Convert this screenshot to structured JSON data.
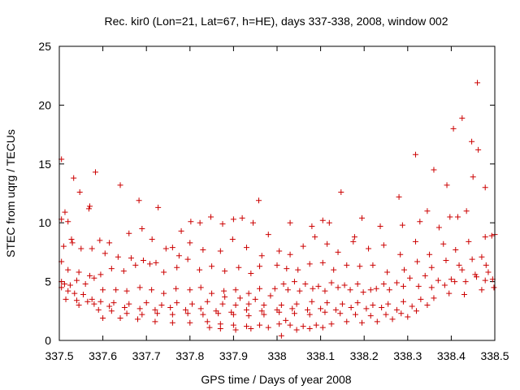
{
  "chart_data": {
    "type": "scatter",
    "title": "Rec. kir0 (Lon=21, Lat=67, h=HE), days 337-338, 2008, window 002",
    "xlabel": "GPS time / Days of year 2008",
    "ylabel": "STEC from uqrg / TECUs",
    "xlim": [
      337.5,
      338.5
    ],
    "ylim": [
      0,
      25
    ],
    "xticks": [
      337.5,
      337.6,
      337.7,
      337.8,
      337.9,
      338.0,
      338.1,
      338.2,
      338.3,
      338.4,
      338.5
    ],
    "xtick_labels": [
      "337.5",
      "337.6",
      "337.7",
      "337.8",
      "337.9",
      "338",
      "338.1",
      "338.2",
      "338.3",
      "338.4",
      "338.5"
    ],
    "yticks": [
      0,
      5,
      10,
      15,
      20,
      25
    ],
    "ytick_labels": [
      "0",
      "5",
      "10",
      "15",
      "20",
      "25"
    ],
    "grid": false,
    "legend": "none",
    "marker": "plus",
    "marker_color": "#cc0000",
    "series": [
      {
        "points": [
          [
            337.505,
            15.4
          ],
          [
            337.513,
            10.9
          ],
          [
            337.52,
            10.1
          ],
          [
            337.533,
            13.8
          ],
          [
            337.547,
            12.6
          ],
          [
            337.568,
            11.2
          ],
          [
            337.583,
            14.3
          ],
          [
            337.64,
            13.2
          ],
          [
            337.683,
            11.9
          ],
          [
            337.727,
            11.3
          ],
          [
            337.958,
            11.9
          ],
          [
            338.147,
            12.6
          ],
          [
            338.28,
            12.2
          ],
          [
            338.318,
            15.8
          ],
          [
            338.36,
            14.5
          ],
          [
            338.405,
            18.0
          ],
          [
            338.425,
            18.9
          ],
          [
            338.447,
            16.9
          ],
          [
            338.462,
            16.2
          ],
          [
            338.46,
            21.9
          ],
          [
            338.478,
            13.0
          ],
          [
            338.45,
            13.9
          ],
          [
            338.39,
            13.2
          ],
          [
            338.345,
            11.0
          ],
          [
            337.505,
            10.3
          ],
          [
            337.528,
            8.6
          ],
          [
            337.57,
            11.4
          ],
          [
            337.593,
            8.5
          ],
          [
            337.615,
            8.3
          ],
          [
            337.66,
            9.1
          ],
          [
            337.69,
            9.5
          ],
          [
            337.713,
            8.6
          ],
          [
            337.76,
            7.9
          ],
          [
            337.78,
            9.3
          ],
          [
            337.802,
            10.1
          ],
          [
            337.823,
            10.0
          ],
          [
            337.848,
            10.5
          ],
          [
            337.875,
            9.9
          ],
          [
            337.9,
            10.3
          ],
          [
            337.92,
            10.4
          ],
          [
            337.945,
            10.0
          ],
          [
            337.98,
            9.0
          ],
          [
            338.03,
            10.0
          ],
          [
            338.08,
            9.7
          ],
          [
            338.105,
            10.2
          ],
          [
            338.12,
            10.0
          ],
          [
            338.178,
            8.8
          ],
          [
            338.195,
            10.4
          ],
          [
            338.237,
            9.7
          ],
          [
            338.288,
            9.8
          ],
          [
            338.328,
            10.1
          ],
          [
            338.372,
            9.6
          ],
          [
            338.397,
            10.5
          ],
          [
            338.415,
            10.5
          ],
          [
            338.435,
            11.0
          ],
          [
            338.478,
            8.8
          ],
          [
            338.493,
            8.9
          ],
          [
            338.5,
            9.0
          ],
          [
            337.51,
            8.0
          ],
          [
            337.53,
            8.3
          ],
          [
            337.55,
            7.8
          ],
          [
            337.575,
            7.8
          ],
          [
            337.605,
            7.4
          ],
          [
            337.635,
            7.1
          ],
          [
            337.665,
            7.0
          ],
          [
            337.693,
            6.8
          ],
          [
            337.722,
            6.6
          ],
          [
            337.745,
            7.8
          ],
          [
            337.775,
            7.2
          ],
          [
            337.8,
            8.3
          ],
          [
            337.83,
            7.7
          ],
          [
            337.87,
            7.6
          ],
          [
            337.898,
            8.6
          ],
          [
            337.93,
            7.9
          ],
          [
            337.965,
            7.2
          ],
          [
            338.005,
            7.6
          ],
          [
            338.03,
            7.3
          ],
          [
            338.06,
            8.0
          ],
          [
            338.087,
            8.8
          ],
          [
            338.115,
            8.2
          ],
          [
            338.14,
            7.5
          ],
          [
            338.175,
            8.4
          ],
          [
            338.21,
            7.8
          ],
          [
            338.245,
            8.1
          ],
          [
            338.283,
            7.3
          ],
          [
            338.318,
            8.4
          ],
          [
            338.35,
            7.3
          ],
          [
            338.382,
            8.2
          ],
          [
            338.41,
            7.7
          ],
          [
            338.44,
            8.4
          ],
          [
            338.47,
            7.1
          ],
          [
            337.505,
            6.7
          ],
          [
            337.52,
            6.0
          ],
          [
            337.545,
            5.8
          ],
          [
            337.57,
            5.5
          ],
          [
            337.595,
            5.6
          ],
          [
            337.62,
            6.1
          ],
          [
            337.648,
            5.9
          ],
          [
            337.675,
            6.4
          ],
          [
            337.708,
            6.5
          ],
          [
            337.74,
            5.8
          ],
          [
            337.77,
            6.2
          ],
          [
            337.795,
            6.9
          ],
          [
            337.822,
            6.0
          ],
          [
            337.85,
            6.3
          ],
          [
            337.88,
            5.9
          ],
          [
            337.912,
            6.2
          ],
          [
            337.94,
            5.7
          ],
          [
            337.96,
            6.3
          ],
          [
            338.0,
            6.4
          ],
          [
            338.022,
            6.1
          ],
          [
            338.048,
            6.0
          ],
          [
            338.075,
            6.5
          ],
          [
            338.105,
            6.6
          ],
          [
            338.13,
            6.0
          ],
          [
            338.16,
            6.4
          ],
          [
            338.19,
            6.3
          ],
          [
            338.22,
            6.4
          ],
          [
            338.253,
            5.8
          ],
          [
            338.292,
            6.0
          ],
          [
            338.322,
            6.7
          ],
          [
            338.355,
            6.2
          ],
          [
            338.388,
            6.8
          ],
          [
            338.418,
            6.4
          ],
          [
            338.448,
            6.9
          ],
          [
            338.48,
            6.4
          ],
          [
            337.505,
            5.0
          ],
          [
            337.512,
            4.8
          ],
          [
            337.525,
            4.7
          ],
          [
            337.54,
            5.1
          ],
          [
            337.56,
            4.8
          ],
          [
            337.58,
            5.3
          ],
          [
            337.6,
            4.3
          ],
          [
            337.63,
            4.3
          ],
          [
            337.655,
            4.2
          ],
          [
            337.685,
            4.5
          ],
          [
            337.712,
            4.3
          ],
          [
            337.74,
            4.0
          ],
          [
            337.768,
            4.4
          ],
          [
            337.8,
            4.3
          ],
          [
            337.825,
            4.5
          ],
          [
            337.85,
            4.0
          ],
          [
            337.878,
            4.2
          ],
          [
            337.905,
            4.3
          ],
          [
            337.935,
            4.0
          ],
          [
            337.96,
            4.4
          ],
          [
            337.995,
            4.4
          ],
          [
            338.025,
            4.3
          ],
          [
            338.052,
            4.2
          ],
          [
            338.082,
            4.4
          ],
          [
            338.11,
            4.2
          ],
          [
            338.14,
            4.5
          ],
          [
            338.168,
            4.3
          ],
          [
            338.198,
            4.1
          ],
          [
            338.228,
            4.4
          ],
          [
            338.258,
            4.3
          ],
          [
            338.29,
            4.6
          ],
          [
            338.325,
            4.6
          ],
          [
            338.355,
            4.5
          ],
          [
            338.385,
            4.7
          ],
          [
            338.408,
            5.0
          ],
          [
            338.433,
            5.0
          ],
          [
            338.458,
            5.4
          ],
          [
            338.478,
            5.1
          ],
          [
            338.495,
            5.2
          ],
          [
            337.505,
            4.5
          ],
          [
            337.52,
            4.2
          ],
          [
            337.535,
            4.0
          ],
          [
            337.555,
            3.9
          ],
          [
            337.575,
            3.5
          ],
          [
            337.595,
            3.3
          ],
          [
            337.625,
            3.2
          ],
          [
            337.66,
            3.1
          ],
          [
            337.7,
            3.2
          ],
          [
            337.735,
            3.0
          ],
          [
            337.77,
            3.2
          ],
          [
            337.805,
            3.1
          ],
          [
            337.84,
            3.3
          ],
          [
            337.875,
            3.1
          ],
          [
            337.905,
            3.0
          ],
          [
            337.935,
            3.1
          ],
          [
            337.97,
            3.0
          ],
          [
            338.01,
            3.0
          ],
          [
            338.045,
            3.1
          ],
          [
            338.08,
            3.3
          ],
          [
            338.115,
            3.2
          ],
          [
            338.15,
            3.1
          ],
          [
            338.185,
            3.2
          ],
          [
            338.22,
            3.0
          ],
          [
            338.255,
            3.1
          ],
          [
            338.29,
            3.3
          ],
          [
            338.33,
            3.5
          ],
          [
            338.36,
            3.6
          ],
          [
            338.395,
            4.0
          ],
          [
            338.43,
            3.9
          ],
          [
            338.47,
            4.3
          ],
          [
            338.498,
            4.5
          ],
          [
            337.54,
            3.4
          ],
          [
            337.565,
            3.3
          ],
          [
            337.59,
            2.6
          ],
          [
            337.62,
            2.5
          ],
          [
            337.655,
            2.3
          ],
          [
            337.69,
            2.2
          ],
          [
            337.725,
            2.3
          ],
          [
            337.76,
            2.2
          ],
          [
            337.795,
            2.3
          ],
          [
            337.83,
            2.2
          ],
          [
            337.865,
            2.3
          ],
          [
            337.9,
            2.2
          ],
          [
            337.935,
            2.1
          ],
          [
            337.97,
            2.2
          ],
          [
            338.005,
            2.4
          ],
          [
            338.04,
            2.3
          ],
          [
            338.075,
            2.2
          ],
          [
            338.11,
            2.4
          ],
          [
            338.145,
            2.3
          ],
          [
            338.18,
            2.2
          ],
          [
            338.215,
            2.1
          ],
          [
            338.25,
            2.2
          ],
          [
            338.285,
            2.3
          ],
          [
            338.32,
            2.5
          ],
          [
            337.6,
            1.9
          ],
          [
            337.64,
            1.9
          ],
          [
            337.68,
            1.8
          ],
          [
            337.72,
            1.6
          ],
          [
            337.76,
            1.5
          ],
          [
            337.8,
            1.5
          ],
          [
            337.84,
            1.6
          ],
          [
            337.87,
            1.4
          ],
          [
            337.9,
            1.3
          ],
          [
            337.93,
            1.2
          ],
          [
            337.96,
            1.3
          ],
          [
            338.005,
            1.4
          ],
          [
            338.03,
            1.3
          ],
          [
            338.06,
            1.2
          ],
          [
            338.09,
            1.3
          ],
          [
            338.125,
            1.4
          ],
          [
            338.16,
            1.6
          ],
          [
            338.195,
            1.5
          ],
          [
            338.23,
            1.6
          ],
          [
            338.265,
            1.8
          ],
          [
            338.3,
            2.0
          ],
          [
            337.87,
            1.0
          ],
          [
            337.905,
            0.9
          ],
          [
            337.94,
            1.0
          ],
          [
            338.01,
            0.4
          ],
          [
            338.045,
            0.9
          ],
          [
            338.075,
            1.0
          ],
          [
            338.105,
            1.1
          ],
          [
            338.02,
            1.7
          ],
          [
            337.98,
            1.1
          ],
          [
            337.845,
            1.1
          ],
          [
            337.88,
            3.7
          ],
          [
            337.915,
            3.6
          ],
          [
            337.95,
            3.5
          ],
          [
            337.985,
            3.8
          ],
          [
            338.015,
            4.8
          ],
          [
            338.04,
            5.0
          ],
          [
            338.065,
            4.8
          ],
          [
            338.095,
            4.6
          ],
          [
            338.125,
            4.9
          ],
          [
            338.155,
            4.7
          ],
          [
            338.185,
            4.8
          ],
          [
            338.215,
            4.3
          ],
          [
            338.245,
            4.8
          ],
          [
            338.275,
            4.9
          ],
          [
            338.305,
            5.3
          ],
          [
            338.34,
            5.5
          ],
          [
            338.37,
            5.1
          ],
          [
            338.4,
            5.2
          ],
          [
            338.425,
            6.0
          ],
          [
            338.455,
            5.6
          ],
          [
            338.485,
            5.8
          ],
          [
            337.515,
            3.5
          ],
          [
            337.545,
            3.0
          ],
          [
            337.58,
            3.1
          ],
          [
            337.615,
            2.9
          ],
          [
            337.65,
            2.8
          ],
          [
            337.685,
            2.7
          ],
          [
            337.72,
            2.6
          ],
          [
            337.755,
            2.8
          ],
          [
            337.79,
            2.6
          ],
          [
            337.825,
            2.7
          ],
          [
            337.86,
            2.5
          ],
          [
            337.895,
            2.4
          ],
          [
            337.93,
            2.6
          ],
          [
            337.965,
            2.5
          ],
          [
            338.0,
            2.6
          ],
          [
            338.035,
            2.7
          ],
          [
            338.07,
            2.6
          ],
          [
            338.1,
            2.7
          ],
          [
            338.135,
            2.6
          ],
          [
            338.17,
            2.8
          ],
          [
            338.205,
            2.7
          ],
          [
            338.24,
            2.8
          ],
          [
            338.275,
            2.6
          ],
          [
            338.31,
            2.9
          ],
          [
            338.345,
            3.0
          ]
        ]
      }
    ]
  }
}
